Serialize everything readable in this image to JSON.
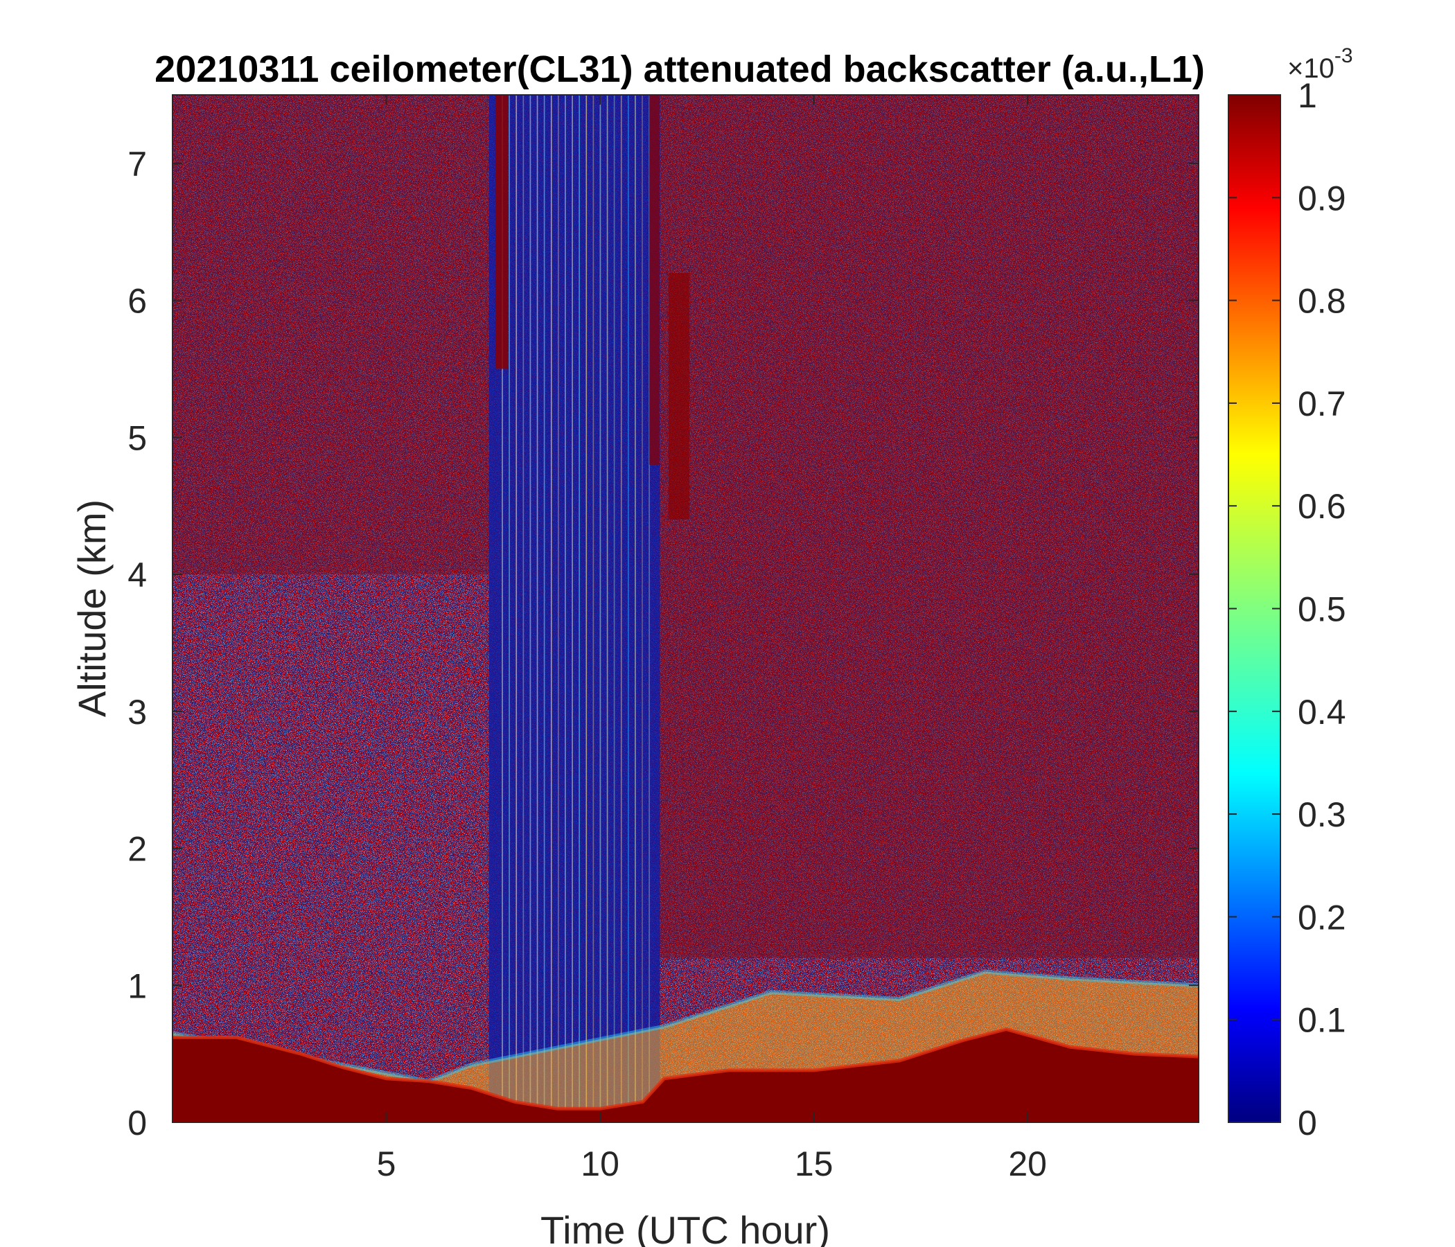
{
  "chart_data": {
    "type": "heatmap",
    "title": "20210311 ceilometer(CL31) attenuated backscatter (a.u.,L1)",
    "xlabel": "Time (UTC hour)",
    "ylabel": "Altitude (km)",
    "xlim": [
      0,
      24
    ],
    "ylim": [
      0,
      7.5
    ],
    "xticks": [
      5,
      10,
      15,
      20
    ],
    "yticks": [
      0,
      1,
      2,
      3,
      4,
      5,
      6,
      7
    ],
    "colorbar": {
      "colormap": "jet",
      "range": [
        0,
        1
      ],
      "ticks": [
        0,
        0.1,
        0.2,
        0.3,
        0.4,
        0.5,
        0.6,
        0.7,
        0.8,
        0.9,
        1
      ],
      "tick_labels": [
        "0",
        "0.1",
        "0.2",
        "0.3",
        "0.4",
        "0.5",
        "0.6",
        "0.7",
        "0.8",
        "0.9",
        "1"
      ],
      "exponent_prefix": "×10",
      "exponent_power": "-3"
    },
    "features": {
      "boundary_layer_top_km": [
        [
          0,
          0.62
        ],
        [
          1.5,
          0.62
        ],
        [
          3,
          0.5
        ],
        [
          4,
          0.4
        ],
        [
          5,
          0.32
        ],
        [
          6,
          0.3
        ],
        [
          7,
          0.25
        ],
        [
          8,
          0.15
        ],
        [
          9,
          0.1
        ],
        [
          10,
          0.1
        ],
        [
          11,
          0.15
        ],
        [
          11.5,
          0.32
        ],
        [
          13,
          0.38
        ],
        [
          15,
          0.38
        ],
        [
          17,
          0.45
        ],
        [
          18.5,
          0.6
        ],
        [
          19.5,
          0.68
        ],
        [
          21,
          0.55
        ],
        [
          22.5,
          0.5
        ],
        [
          24,
          0.48
        ]
      ],
      "aerosol_layer_top_km": [
        [
          0,
          0.65
        ],
        [
          6,
          0.3
        ],
        [
          7,
          0.42
        ],
        [
          11.5,
          0.7
        ],
        [
          14,
          0.95
        ],
        [
          17,
          0.9
        ],
        [
          19,
          1.1
        ],
        [
          21,
          1.05
        ],
        [
          24,
          1.0
        ]
      ],
      "clear_signal_window_hours": [
        7.4,
        11.4
      ]
    }
  }
}
